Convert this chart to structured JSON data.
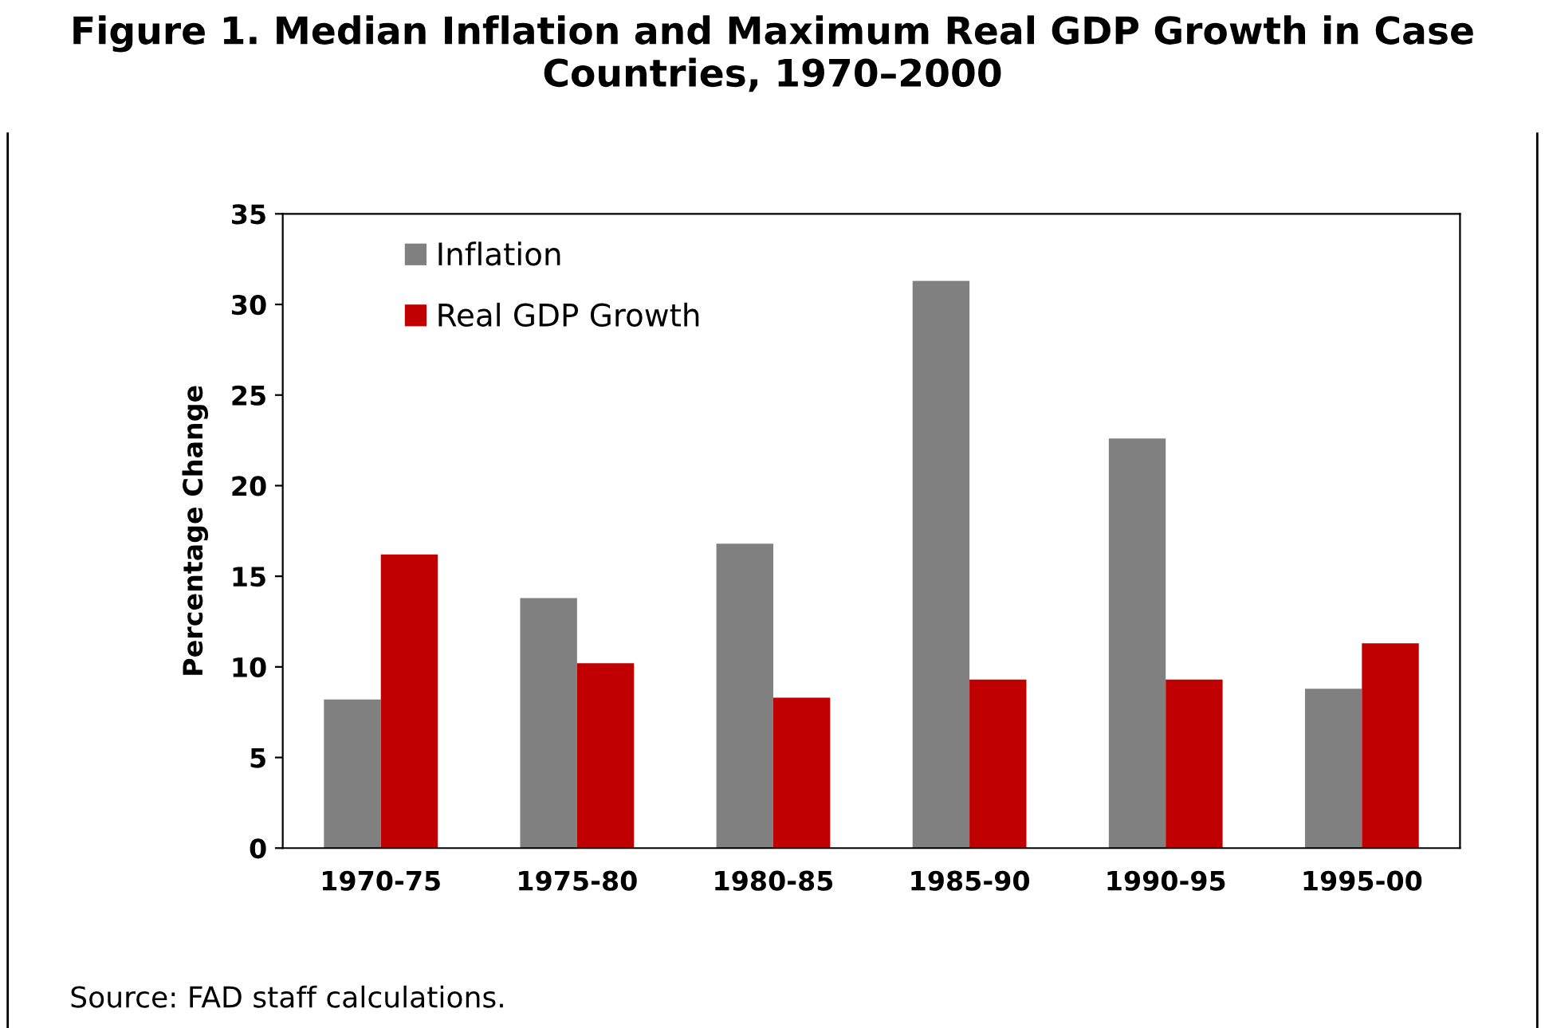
{
  "chart_data": {
    "type": "bar",
    "title": "Figure 1. Median Inflation and Maximum Real GDP Growth in Case Countries, 1970–2000",
    "ylabel": "Percentage Change",
    "categories": [
      "1970-75",
      "1975-80",
      "1980-85",
      "1985-90",
      "1990-95",
      "1995-00"
    ],
    "series": [
      {
        "name": "Inflation",
        "color": "#808080",
        "values": [
          8.2,
          13.8,
          16.8,
          31.3,
          22.6,
          8.8
        ]
      },
      {
        "name": "Real GDP Growth",
        "color": "#c00000",
        "values": [
          16.2,
          10.2,
          8.3,
          9.3,
          9.3,
          11.3
        ]
      }
    ],
    "ylim": [
      0,
      35
    ],
    "yticks": [
      0,
      5,
      10,
      15,
      20,
      25,
      30,
      35
    ],
    "grid": false,
    "legend": "top left",
    "annotations": [
      "Source: FAD staff calculations."
    ]
  }
}
